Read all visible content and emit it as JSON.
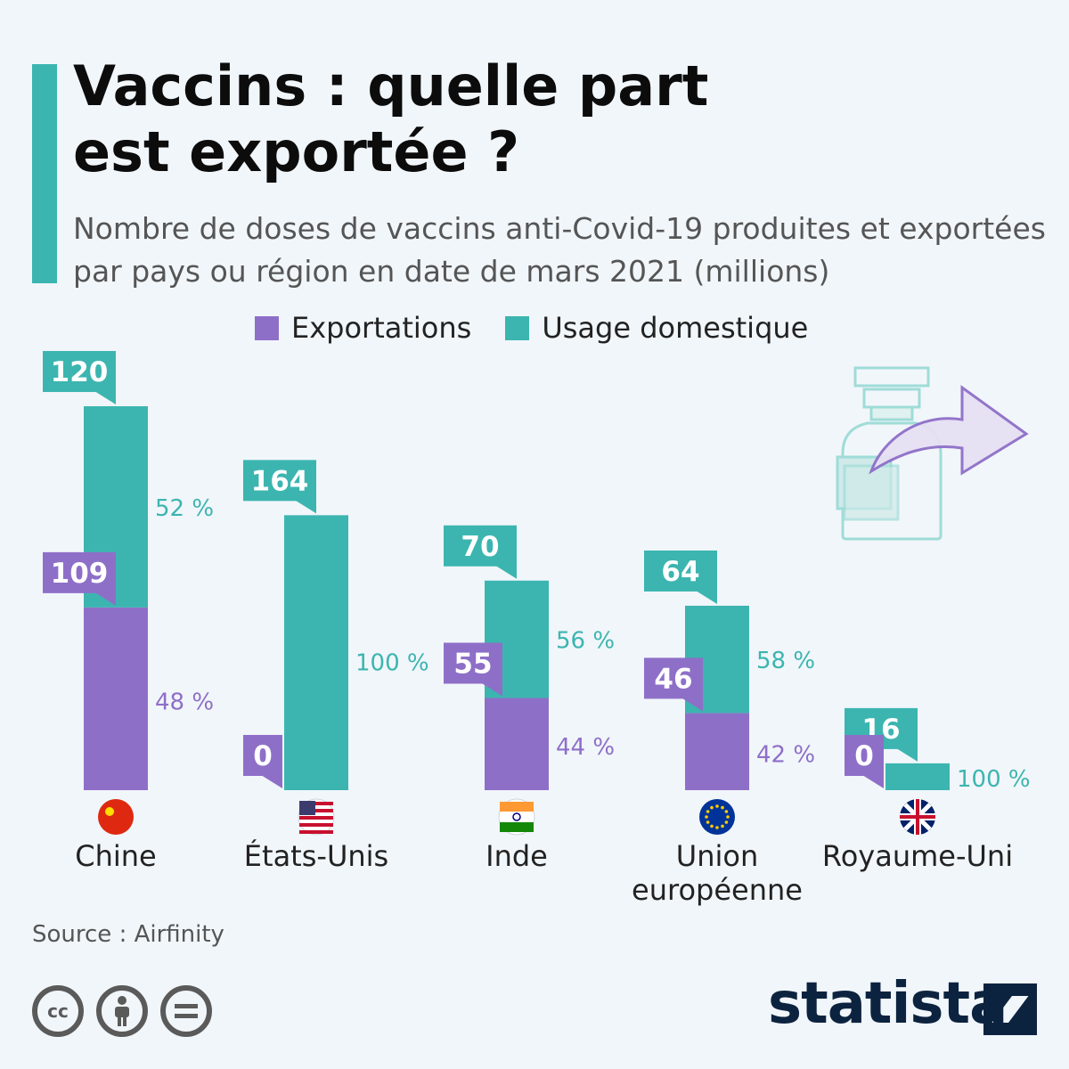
{
  "title": [
    "Vaccins : quelle part",
    "est exportée ?"
  ],
  "subtitle": "Nombre de doses de vaccins anti-Covid-19 produites et exportées par pays ou région en date de mars 2021 (millions)",
  "legend": {
    "exports_label": "Exportations",
    "domestic_label": "Usage domestique"
  },
  "colors": {
    "exports": "#8e6fc8",
    "domestic": "#3cb5b0",
    "accent": "#3cb5b0"
  },
  "chart_data": {
    "type": "bar",
    "stacked": true,
    "categories": [
      "Chine",
      "États-Unis",
      "Inde",
      "Union européenne",
      "Royaume-Uni"
    ],
    "category_lines": [
      [
        "Chine"
      ],
      [
        "États-Unis"
      ],
      [
        "Inde"
      ],
      [
        "Union",
        "européenne"
      ],
      [
        "Royaume-Uni"
      ]
    ],
    "flags": [
      "china-flag",
      "usa-flag",
      "india-flag",
      "eu-flag",
      "uk-flag"
    ],
    "series": [
      {
        "name": "Exportations",
        "values": [
          109,
          0,
          55,
          46,
          0
        ],
        "pct_labels": [
          "48 %",
          "",
          "44 %",
          "42 %",
          ""
        ]
      },
      {
        "name": "Usage domestique",
        "values": [
          120,
          164,
          70,
          64,
          16
        ],
        "pct_labels": [
          "52 %",
          "100 %",
          "56 %",
          "58 %",
          "100 %"
        ]
      }
    ],
    "export_callouts": [
      "109",
      "0",
      "55",
      "46",
      "0"
    ],
    "domestic_callouts": [
      "120",
      "164",
      "70",
      "64",
      "16"
    ],
    "ylim": [
      0,
      229
    ],
    "grid": false,
    "legend_position": "top"
  },
  "source": "Source : Airfinity",
  "license_icons": [
    "cc-icon",
    "attribution-icon",
    "no-derivatives-icon"
  ],
  "brand": "statista"
}
